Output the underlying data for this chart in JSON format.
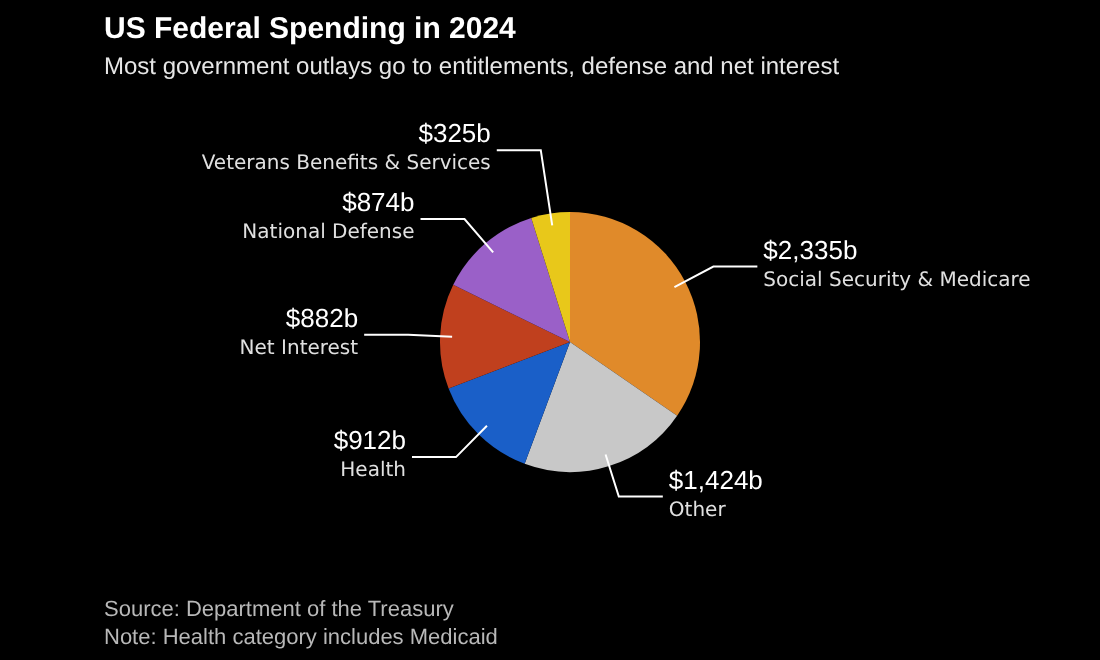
{
  "chart_data": {
    "type": "pie",
    "title": "US Federal Spending in 2024",
    "subtitle": "Most government outlays go to entitlements, defense and net interest",
    "categories": [
      "Social Security & Medicare",
      "Other",
      "Health",
      "Net Interest",
      "National Defense",
      "Veterans Benefits & Services"
    ],
    "values": [
      2335,
      1424,
      912,
      882,
      874,
      325
    ],
    "value_labels": [
      "$2,335b",
      "$1,424b",
      "$912b",
      "$882b",
      "$874b",
      "$325b"
    ],
    "colors": [
      "#e08a2a",
      "#c8c8c8",
      "#1a5fc8",
      "#c0401e",
      "#9a60c8",
      "#e8c81a"
    ],
    "legend": false,
    "annotations": [
      "Source: Department of the Treasury",
      "Note: Health category includes Medicaid"
    ]
  }
}
